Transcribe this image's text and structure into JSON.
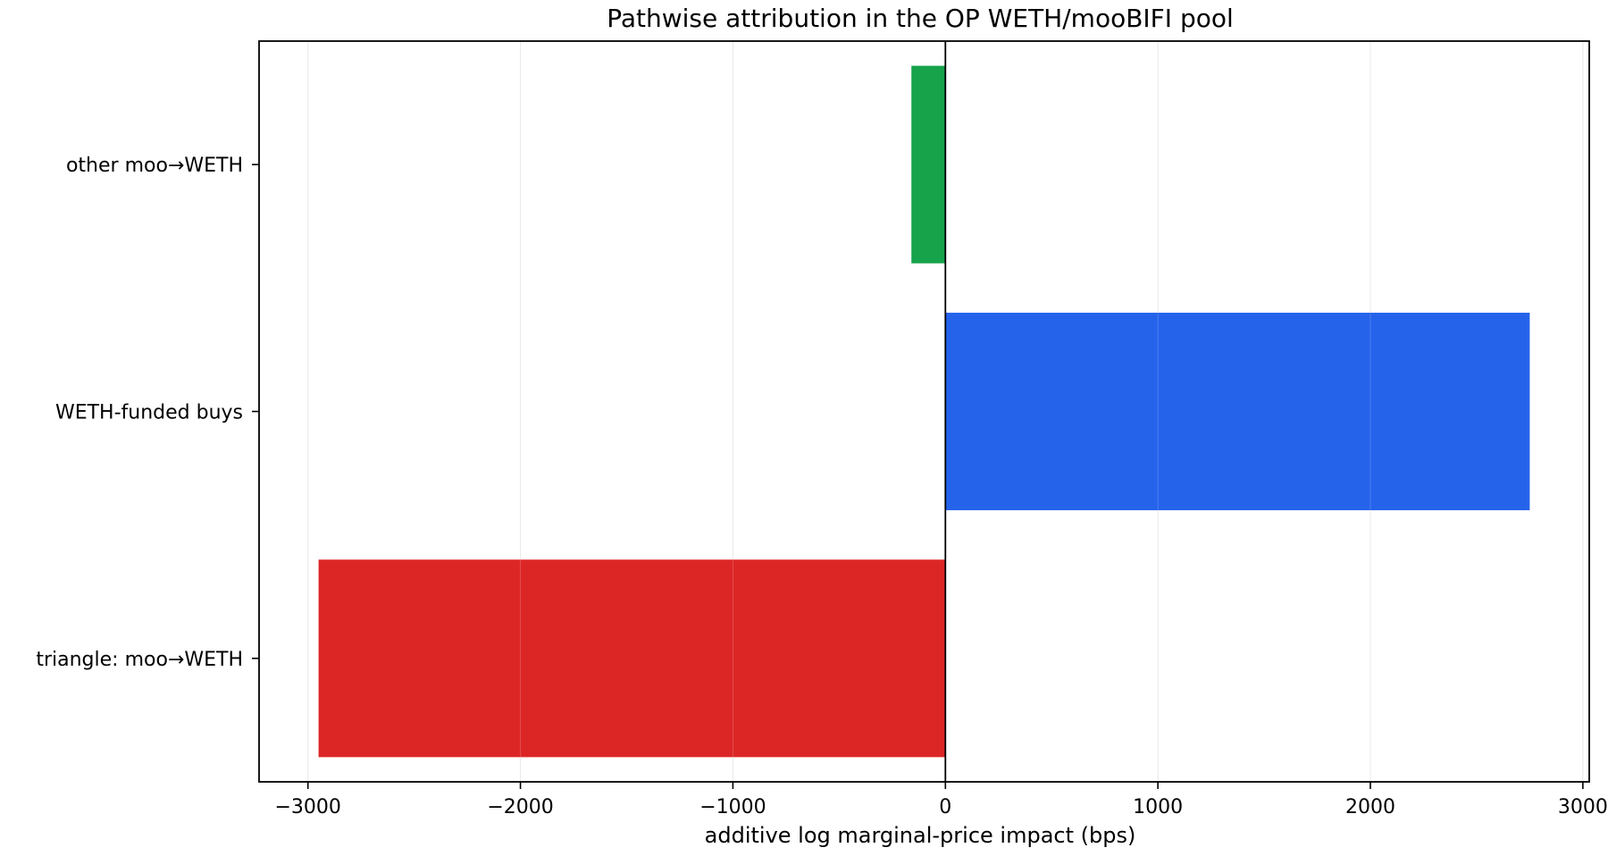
{
  "chart_data": {
    "type": "bar",
    "orientation": "horizontal",
    "title": "Pathwise attribution in the OP WETH/mooBIFI pool",
    "xlabel": "additive log marginal-price impact (bps)",
    "ylabel": "",
    "xlim": [
      -3230,
      3030
    ],
    "xticks": [
      -3000,
      -2000,
      -1000,
      0,
      1000,
      2000,
      3000
    ],
    "xtick_labels": [
      "−3000",
      "−2000",
      "−1000",
      "0",
      "1000",
      "2000",
      "3000"
    ],
    "categories": [
      "triangle: moo→WETH",
      "WETH-funded buys",
      "other moo→WETH"
    ],
    "values": [
      -2950,
      2750,
      -160
    ],
    "bar_colors": [
      "#dc2626",
      "#2563eb",
      "#16a34a"
    ],
    "grid": "vertical",
    "zero_line": true,
    "legend": "none"
  }
}
